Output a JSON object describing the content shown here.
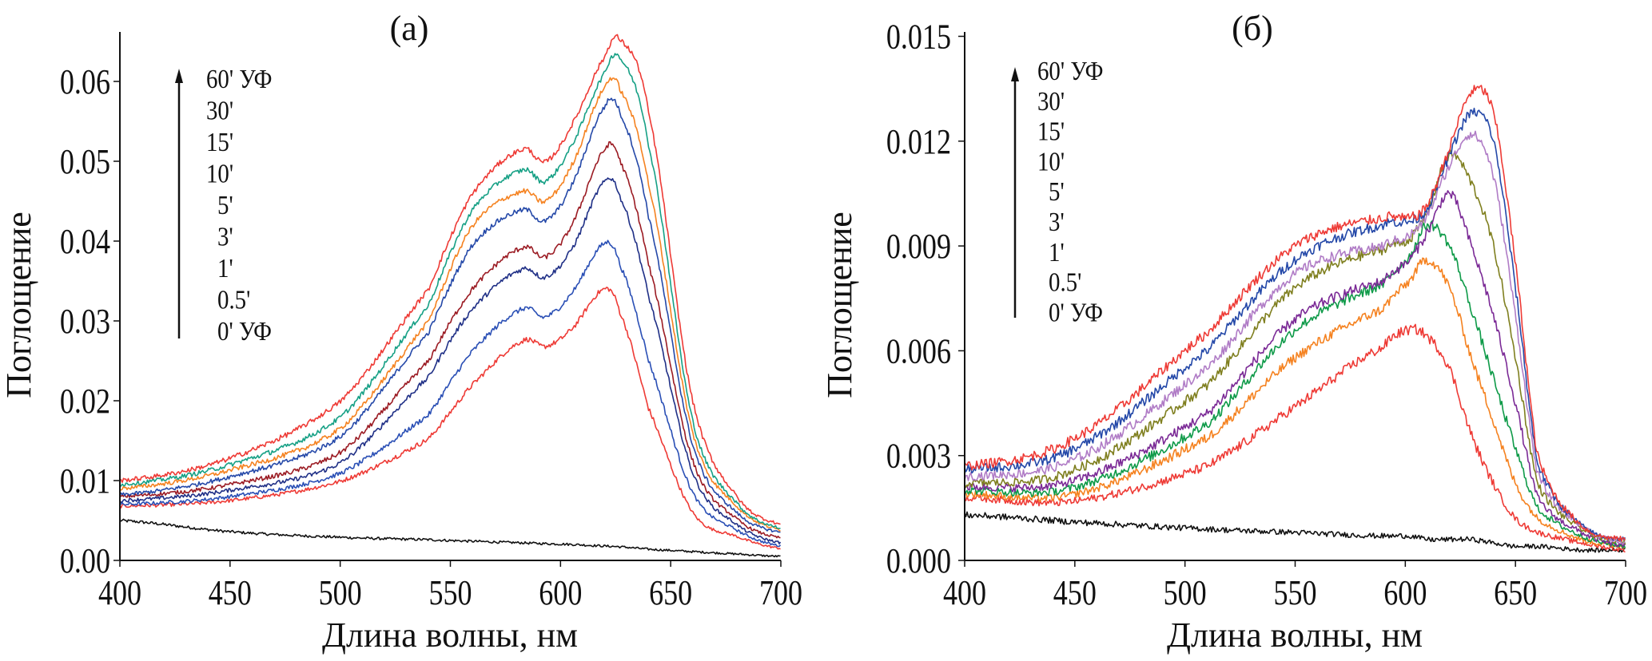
{
  "figure": {
    "panels": [
      "a",
      "b"
    ]
  },
  "chart_data": [
    {
      "type": "line",
      "panel_label": "(а)",
      "title": "(а)",
      "xlabel": "Длина волны, нм",
      "ylabel": "Поглощение",
      "xlim": [
        400,
        700
      ],
      "ylim": [
        0,
        0.066
      ],
      "xticks": [
        400,
        450,
        500,
        550,
        600,
        650,
        700
      ],
      "xtick_labels": [
        "400",
        "450",
        "500",
        "550",
        "600",
        "650",
        "700"
      ],
      "yticks": [
        0,
        0.01,
        0.02,
        0.03,
        0.04,
        0.05,
        0.06
      ],
      "ytick_labels": [
        "0.00",
        "0.01",
        "0.02",
        "0.03",
        "0.04",
        "0.05",
        "0.06"
      ],
      "grid": false,
      "legend": {
        "placement": "top-left",
        "arrow": "up",
        "entries": [
          "60' УФ",
          "30'",
          "15'",
          "10'",
          "5'",
          "3'",
          "1'",
          "0.5'",
          "0' УФ"
        ]
      },
      "x": [
        400,
        450,
        500,
        540,
        560,
        583,
        593,
        605,
        620,
        627,
        640,
        660,
        680,
        700
      ],
      "series": [
        {
          "name": "60' УФ",
          "color": "#ee3a35",
          "peak_nm": 627,
          "values": [
            0.01,
            0.0128,
            0.0199,
            0.0339,
            0.0459,
            0.0515,
            0.0499,
            0.0545,
            0.063,
            0.0652,
            0.056,
            0.02,
            0.008,
            0.0045
          ]
        },
        {
          "name": "30'",
          "color": "#16a085",
          "peak_nm": 626,
          "values": [
            0.0095,
            0.012,
            0.0179,
            0.0319,
            0.0439,
            0.0489,
            0.0475,
            0.052,
            0.061,
            0.0629,
            0.052,
            0.0175,
            0.0072,
            0.004
          ]
        },
        {
          "name": "15'",
          "color": "#f58220",
          "peak_nm": 623,
          "values": [
            0.009,
            0.0113,
            0.0165,
            0.0299,
            0.0419,
            0.0462,
            0.045,
            0.0495,
            0.0592,
            0.059,
            0.047,
            0.016,
            0.0068,
            0.0038
          ]
        },
        {
          "name": "10'",
          "color": "#2448a8",
          "peak_nm": 622,
          "values": [
            0.0082,
            0.0105,
            0.0155,
            0.0285,
            0.0395,
            0.0439,
            0.0425,
            0.047,
            0.0568,
            0.056,
            0.043,
            0.0145,
            0.006,
            0.0035
          ]
        },
        {
          "name": "5'",
          "color": "#9b1b23",
          "peak_nm": 621,
          "values": [
            0.008,
            0.0095,
            0.0135,
            0.0249,
            0.034,
            0.0392,
            0.038,
            0.042,
            0.0514,
            0.05,
            0.037,
            0.0125,
            0.0052,
            0.0028
          ]
        },
        {
          "name": "3'",
          "color": "#1f2f86",
          "peak_nm": 620,
          "values": [
            0.0075,
            0.0088,
            0.0122,
            0.0229,
            0.0315,
            0.0365,
            0.0355,
            0.039,
            0.0474,
            0.0455,
            0.033,
            0.011,
            0.0045,
            0.0022
          ]
        },
        {
          "name": "1'",
          "color": "#2a4fb5",
          "peak_nm": 618,
          "values": [
            0.007,
            0.008,
            0.0109,
            0.0182,
            0.0262,
            0.0315,
            0.0305,
            0.0335,
            0.0397,
            0.037,
            0.025,
            0.0085,
            0.0038,
            0.0018
          ]
        },
        {
          "name": "0.5'",
          "color": "#ee3a35",
          "peak_nm": 618,
          "values": [
            0.0068,
            0.0075,
            0.0099,
            0.0152,
            0.022,
            0.0275,
            0.0268,
            0.029,
            0.034,
            0.031,
            0.019,
            0.006,
            0.003,
            0.0015
          ]
        },
        {
          "name": "0' УФ",
          "color": "#111111",
          "peak_nm": null,
          "values": [
            0.005,
            0.0036,
            0.0029,
            0.0026,
            0.0024,
            0.0022,
            0.0021,
            0.002,
            0.0018,
            0.0017,
            0.0014,
            0.0011,
            0.0008,
            0.0005
          ]
        }
      ]
    },
    {
      "type": "line",
      "panel_label": "(б)",
      "title": "(б)",
      "xlabel": "Длина волны, нм",
      "ylabel": "Поглощение",
      "xlim": [
        400,
        700
      ],
      "ylim": [
        0,
        0.015
      ],
      "xticks": [
        400,
        450,
        500,
        550,
        600,
        650,
        700
      ],
      "xtick_labels": [
        "400",
        "450",
        "500",
        "550",
        "600",
        "650",
        "700"
      ],
      "yticks": [
        0,
        0.003,
        0.006,
        0.009,
        0.012,
        0.015
      ],
      "ytick_labels": [
        "0.000",
        "0.003",
        "0.006",
        "0.009",
        "0.012",
        "0.015"
      ],
      "grid": false,
      "legend": {
        "placement": "top-left",
        "arrow": "up",
        "entries": [
          "60' УФ",
          "30'",
          "15'",
          "10'",
          "5'",
          "3'",
          "1'",
          "0.5'",
          "0' УФ"
        ]
      },
      "x": [
        400,
        450,
        510,
        550,
        590,
        602,
        610,
        620,
        630,
        640,
        650,
        660,
        680,
        700
      ],
      "series": [
        {
          "name": "60' УФ",
          "color": "#ee3a35",
          "peak_nm": 633,
          "values": [
            0.0027,
            0.0035,
            0.0065,
            0.009,
            0.0098,
            0.0098,
            0.0102,
            0.0118,
            0.0134,
            0.0128,
            0.0085,
            0.003,
            0.001,
            0.0006
          ]
        },
        {
          "name": "30'",
          "color": "#2448a8",
          "peak_nm": 630,
          "values": [
            0.0026,
            0.0032,
            0.006,
            0.0086,
            0.0096,
            0.0097,
            0.0101,
            0.0116,
            0.0128,
            0.012,
            0.0078,
            0.0028,
            0.001,
            0.0006
          ]
        },
        {
          "name": "15'",
          "color": "#b07cc6",
          "peak_nm": 625,
          "values": [
            0.0024,
            0.0029,
            0.0055,
            0.0082,
            0.009,
            0.0093,
            0.0099,
            0.0113,
            0.0122,
            0.011,
            0.007,
            0.0025,
            0.001,
            0.0005
          ]
        },
        {
          "name": "10'",
          "color": "#7f7f1f",
          "peak_nm": 620,
          "values": [
            0.0022,
            0.0026,
            0.005,
            0.0078,
            0.0089,
            0.0092,
            0.01,
            0.0116,
            0.0108,
            0.009,
            0.0058,
            0.0022,
            0.0009,
            0.0005
          ]
        },
        {
          "name": "5'",
          "color": "#7b2a96",
          "peak_nm": 620,
          "values": [
            0.0021,
            0.0023,
            0.0042,
            0.0069,
            0.008,
            0.0086,
            0.0094,
            0.0105,
            0.009,
            0.007,
            0.0045,
            0.0018,
            0.0008,
            0.0004
          ]
        },
        {
          "name": "3'",
          "color": "#0e9a48",
          "peak_nm": 613,
          "values": [
            0.002,
            0.0021,
            0.0039,
            0.0066,
            0.0079,
            0.0087,
            0.0096,
            0.009,
            0.0072,
            0.0052,
            0.0032,
            0.0015,
            0.0007,
            0.0004
          ]
        },
        {
          "name": "1'",
          "color": "#f58220",
          "peak_nm": 610,
          "values": [
            0.0019,
            0.0019,
            0.0035,
            0.0058,
            0.0072,
            0.008,
            0.0086,
            0.0078,
            0.0058,
            0.004,
            0.0022,
            0.0012,
            0.0006,
            0.0004
          ]
        },
        {
          "name": "0.5'",
          "color": "#ee3a35",
          "peak_nm": 602,
          "values": [
            0.0018,
            0.0017,
            0.0027,
            0.0044,
            0.0061,
            0.0066,
            0.0064,
            0.0055,
            0.0036,
            0.0022,
            0.0012,
            0.0008,
            0.0005,
            0.0003
          ]
        },
        {
          "name": "0' УФ",
          "color": "#111111",
          "peak_nm": null,
          "values": [
            0.0013,
            0.0011,
            0.0009,
            0.0008,
            0.0007,
            0.0007,
            0.0006,
            0.0006,
            0.0006,
            0.0005,
            0.0004,
            0.0004,
            0.0003,
            0.0003
          ]
        }
      ]
    }
  ]
}
